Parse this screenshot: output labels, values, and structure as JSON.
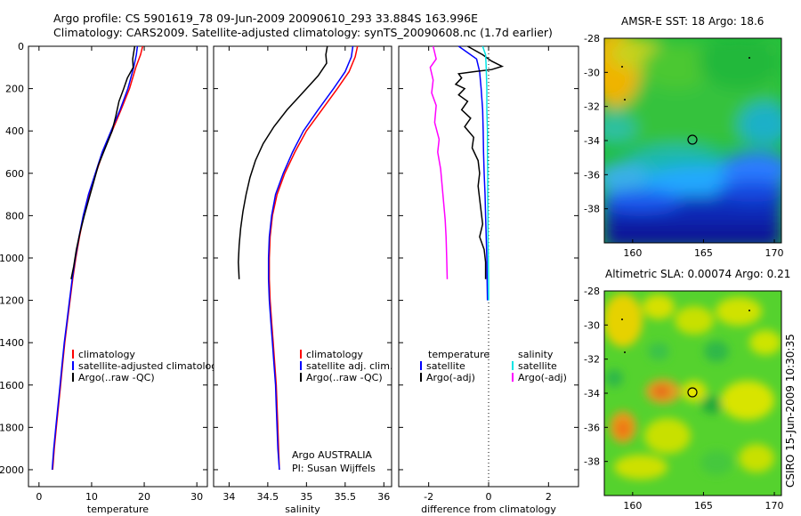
{
  "header": {
    "line1": "Argo profile: CS 5901619_78 09-Jun-2009 20090610_293 33.884S 163.996E",
    "line2": "Climatology: CARS2009. Satellite-adjusted climatology: synTS_20090608.nc (1.7d earlier)"
  },
  "colors": {
    "climatology": "#ff0000",
    "satellite": "#0000ff",
    "argo": "#000000",
    "sat_salinity": "#00e5e5",
    "argo_salinity": "#ff00ff"
  },
  "chart_data": [
    {
      "type": "line",
      "id": "temperature",
      "xlabel": "temperature",
      "ylabel": "",
      "xlim": [
        -2,
        32
      ],
      "ylim": [
        2080,
        0
      ],
      "xticks": [
        0,
        10,
        20,
        30
      ],
      "yticks": [
        0,
        200,
        400,
        600,
        800,
        1000,
        1200,
        1400,
        1600,
        1800,
        2000
      ],
      "legend": [
        "climatology",
        "satellite-adjusted climatology",
        "Argo(..raw -QC)"
      ],
      "series": [
        {
          "name": "climatology",
          "color": "#ff0000",
          "points": [
            [
              19.7,
              0
            ],
            [
              19.3,
              40
            ],
            [
              18.4,
              100
            ],
            [
              17.2,
              200
            ],
            [
              15.6,
              300
            ],
            [
              13.9,
              400
            ],
            [
              12.2,
              500
            ],
            [
              10.8,
              600
            ],
            [
              9.5,
              700
            ],
            [
              8.5,
              800
            ],
            [
              7.7,
              900
            ],
            [
              7.0,
              1000
            ],
            [
              6.4,
              1100
            ],
            [
              5.9,
              1200
            ],
            [
              5.4,
              1300
            ],
            [
              4.9,
              1400
            ],
            [
              4.5,
              1500
            ],
            [
              4.1,
              1600
            ],
            [
              3.7,
              1700
            ],
            [
              3.3,
              1800
            ],
            [
              2.9,
              1900
            ],
            [
              2.6,
              2000
            ]
          ]
        },
        {
          "name": "satellite-adjusted climatology",
          "color": "#0000ff",
          "points": [
            [
              18.7,
              0
            ],
            [
              18.5,
              40
            ],
            [
              18.0,
              100
            ],
            [
              16.9,
              200
            ],
            [
              15.4,
              300
            ],
            [
              13.7,
              400
            ],
            [
              12.0,
              500
            ],
            [
              10.7,
              600
            ],
            [
              9.4,
              700
            ],
            [
              8.4,
              800
            ],
            [
              7.6,
              900
            ],
            [
              6.9,
              1000
            ],
            [
              6.3,
              1100
            ],
            [
              5.8,
              1200
            ],
            [
              5.3,
              1300
            ],
            [
              4.8,
              1400
            ],
            [
              4.4,
              1500
            ],
            [
              4.0,
              1600
            ],
            [
              3.6,
              1700
            ],
            [
              3.2,
              1800
            ],
            [
              2.8,
              1900
            ],
            [
              2.5,
              2000
            ]
          ]
        },
        {
          "name": "Argo(..raw -QC)",
          "color": "#000000",
          "points": [
            [
              18.2,
              0
            ],
            [
              18.0,
              30
            ],
            [
              17.8,
              60
            ],
            [
              17.9,
              100
            ],
            [
              16.8,
              150
            ],
            [
              16.1,
              200
            ],
            [
              15.2,
              260
            ],
            [
              14.6,
              330
            ],
            [
              13.9,
              400
            ],
            [
              12.6,
              480
            ],
            [
              11.3,
              560
            ],
            [
              10.4,
              640
            ],
            [
              9.5,
              720
            ],
            [
              8.6,
              800
            ],
            [
              7.8,
              880
            ],
            [
              7.1,
              960
            ],
            [
              6.6,
              1040
            ],
            [
              6.1,
              1100
            ]
          ]
        }
      ]
    },
    {
      "type": "line",
      "id": "salinity",
      "xlabel": "salinity",
      "xlim": [
        33.8,
        36.1
      ],
      "ylim": [
        2080,
        0
      ],
      "xticks": [
        34,
        34.5,
        35,
        35.5,
        36
      ],
      "xticklabels": [
        "34",
        "34.5",
        "35",
        "35.5",
        "36"
      ],
      "legend": [
        "climatology",
        "satellite adj. clim.",
        "Argo(..raw -QC)"
      ],
      "note": [
        "Argo AUSTRALIA",
        "PI: Susan Wijffels"
      ],
      "series": [
        {
          "name": "climatology",
          "color": "#ff0000",
          "points": [
            [
              35.66,
              0
            ],
            [
              35.63,
              50
            ],
            [
              35.55,
              120
            ],
            [
              35.4,
              200
            ],
            [
              35.2,
              300
            ],
            [
              35.0,
              400
            ],
            [
              34.85,
              500
            ],
            [
              34.72,
              600
            ],
            [
              34.62,
              700
            ],
            [
              34.56,
              800
            ],
            [
              34.53,
              900
            ],
            [
              34.52,
              1000
            ],
            [
              34.52,
              1100
            ],
            [
              34.53,
              1200
            ],
            [
              34.55,
              1300
            ],
            [
              34.57,
              1400
            ],
            [
              34.59,
              1500
            ],
            [
              34.61,
              1600
            ],
            [
              34.62,
              1700
            ],
            [
              34.63,
              1800
            ],
            [
              34.64,
              1900
            ],
            [
              34.65,
              2000
            ]
          ]
        },
        {
          "name": "satellite adj. clim.",
          "color": "#0000ff",
          "points": [
            [
              35.6,
              0
            ],
            [
              35.58,
              50
            ],
            [
              35.5,
              120
            ],
            [
              35.35,
              200
            ],
            [
              35.15,
              300
            ],
            [
              34.96,
              400
            ],
            [
              34.82,
              500
            ],
            [
              34.7,
              600
            ],
            [
              34.6,
              700
            ],
            [
              34.55,
              800
            ],
            [
              34.52,
              900
            ],
            [
              34.51,
              1000
            ],
            [
              34.51,
              1100
            ],
            [
              34.52,
              1200
            ],
            [
              34.54,
              1300
            ],
            [
              34.56,
              1400
            ],
            [
              34.58,
              1500
            ],
            [
              34.6,
              1600
            ],
            [
              34.61,
              1700
            ],
            [
              34.62,
              1800
            ],
            [
              34.63,
              1900
            ],
            [
              34.65,
              2000
            ]
          ]
        },
        {
          "name": "Argo(..raw -QC)",
          "color": "#000000",
          "points": [
            [
              35.27,
              0
            ],
            [
              35.25,
              40
            ],
            [
              35.26,
              80
            ],
            [
              35.15,
              140
            ],
            [
              34.95,
              220
            ],
            [
              34.75,
              300
            ],
            [
              34.58,
              380
            ],
            [
              34.44,
              460
            ],
            [
              34.34,
              540
            ],
            [
              34.27,
              620
            ],
            [
              34.22,
              700
            ],
            [
              34.18,
              780
            ],
            [
              34.15,
              860
            ],
            [
              34.13,
              940
            ],
            [
              34.12,
              1020
            ],
            [
              34.13,
              1100
            ]
          ]
        }
      ]
    },
    {
      "type": "line",
      "id": "difference",
      "xlabel": "difference from climatology",
      "xlim": [
        -3,
        3
      ],
      "ylim": [
        2080,
        0
      ],
      "xticks": [
        -2,
        0,
        2
      ],
      "legend_left_title": "temperature",
      "legend_right_title": "salinity",
      "legend": [
        "satellite",
        "Argo(-adj)",
        "satellite",
        "Argo(-adj)"
      ],
      "series": [
        {
          "name": "temperature satellite",
          "color": "#0000ff",
          "points": [
            [
              -1.0,
              0
            ],
            [
              -0.7,
              30
            ],
            [
              -0.4,
              60
            ],
            [
              -0.3,
              120
            ],
            [
              -0.25,
              200
            ],
            [
              -0.2,
              300
            ],
            [
              -0.18,
              400
            ],
            [
              -0.17,
              500
            ],
            [
              -0.15,
              600
            ],
            [
              -0.12,
              700
            ],
            [
              -0.1,
              800
            ],
            [
              -0.08,
              900
            ],
            [
              -0.06,
              1000
            ],
            [
              -0.05,
              1100
            ],
            [
              -0.04,
              1200
            ]
          ]
        },
        {
          "name": "temperature Argo(-adj)",
          "color": "#000000",
          "points": [
            [
              -0.7,
              0
            ],
            [
              -0.2,
              40
            ],
            [
              0.1,
              70
            ],
            [
              0.45,
              95
            ],
            [
              0.1,
              110
            ],
            [
              -0.5,
              120
            ],
            [
              -1.0,
              130
            ],
            [
              -0.9,
              150
            ],
            [
              -1.1,
              180
            ],
            [
              -0.8,
              200
            ],
            [
              -1.0,
              230
            ],
            [
              -0.7,
              260
            ],
            [
              -0.9,
              300
            ],
            [
              -0.6,
              340
            ],
            [
              -0.8,
              380
            ],
            [
              -0.5,
              430
            ],
            [
              -0.55,
              480
            ],
            [
              -0.35,
              540
            ],
            [
              -0.3,
              600
            ],
            [
              -0.35,
              660
            ],
            [
              -0.3,
              720
            ],
            [
              -0.25,
              780
            ],
            [
              -0.2,
              840
            ],
            [
              -0.3,
              900
            ],
            [
              -0.15,
              960
            ],
            [
              -0.1,
              1020
            ],
            [
              -0.1,
              1100
            ]
          ]
        },
        {
          "name": "salinity satellite",
          "color": "#00e5e5",
          "points": [
            [
              -0.2,
              0
            ],
            [
              -0.1,
              40
            ],
            [
              -0.08,
              100
            ],
            [
              -0.06,
              200
            ],
            [
              -0.06,
              300
            ],
            [
              -0.04,
              400
            ],
            [
              -0.04,
              500
            ],
            [
              -0.03,
              600
            ],
            [
              -0.03,
              700
            ],
            [
              -0.02,
              800
            ],
            [
              -0.02,
              900
            ],
            [
              -0.01,
              1000
            ],
            [
              0.0,
              1100
            ],
            [
              0.0,
              1200
            ]
          ]
        },
        {
          "name": "salinity Argo(-adj)",
          "color": "#ff00ff",
          "points": [
            [
              -1.85,
              0
            ],
            [
              -1.75,
              60
            ],
            [
              -1.95,
              100
            ],
            [
              -1.85,
              160
            ],
            [
              -1.9,
              220
            ],
            [
              -1.75,
              280
            ],
            [
              -1.8,
              360
            ],
            [
              -1.65,
              440
            ],
            [
              -1.7,
              500
            ],
            [
              -1.6,
              580
            ],
            [
              -1.55,
              660
            ],
            [
              -1.5,
              740
            ],
            [
              -1.45,
              820
            ],
            [
              -1.42,
              900
            ],
            [
              -1.4,
              1000
            ],
            [
              -1.38,
              1100
            ]
          ]
        }
      ]
    },
    {
      "type": "heatmap",
      "id": "sst-map",
      "title": "AMSR-E SST: 18 Argo: 18.6",
      "xlim": [
        158,
        170.5
      ],
      "ylim": [
        -40,
        -28
      ],
      "xticks": [
        160,
        165,
        170
      ],
      "yticks": [
        -28,
        -30,
        -32,
        -34,
        -36,
        -38
      ],
      "marker": {
        "lon": 163.996,
        "lat": -33.884,
        "fill": "none"
      }
    },
    {
      "type": "heatmap",
      "id": "sla-map",
      "title": "Altimetric SLA: 0.00074 Argo: 0.21",
      "xlim": [
        158,
        170.5
      ],
      "ylim": [
        -40,
        -28
      ],
      "xticks": [
        160,
        165,
        170
      ],
      "yticks": [
        -28,
        -30,
        -32,
        -34,
        -36,
        -38
      ],
      "marker": {
        "lon": 163.996,
        "lat": -33.884,
        "fill": "#e5e500"
      }
    }
  ],
  "footer": {
    "stamp": "CSIRO 15-Jun-2009 10:30:35"
  }
}
